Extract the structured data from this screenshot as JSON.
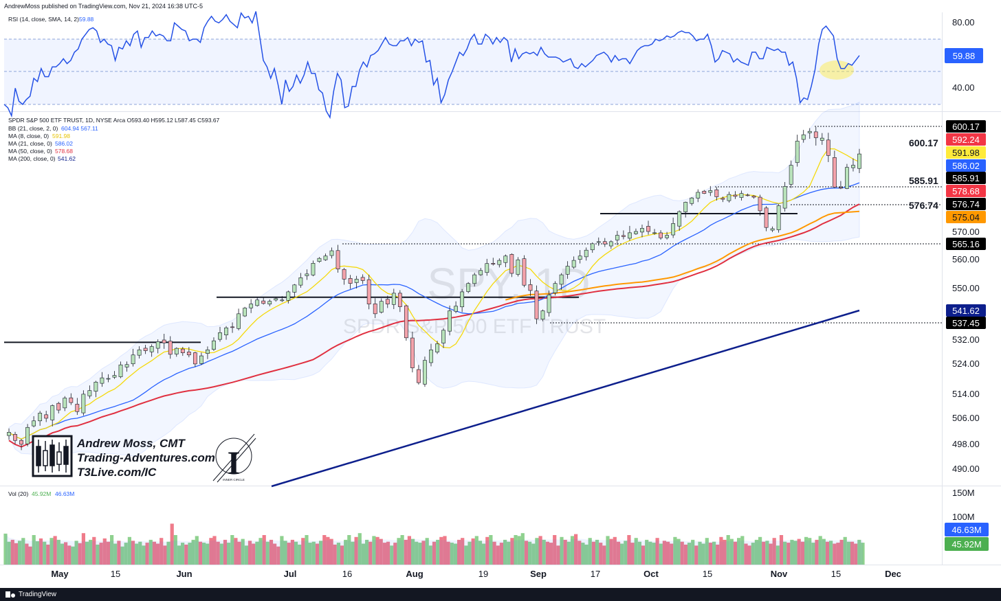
{
  "header": {
    "published": "AndrewMoss published on TradingView.com, Nov 21, 2024 16:38 UTC-5"
  },
  "rsi": {
    "legend": "RSI (14, close, SMA, 14, 2)",
    "value": "59.88",
    "ticks": [
      "80.00",
      "40.00"
    ],
    "upper_band": 70,
    "lower_band": 30,
    "series": [
      30,
      28,
      23,
      40,
      32,
      30,
      33,
      35,
      46,
      44,
      52,
      47,
      47,
      53,
      53,
      55,
      58,
      55,
      57,
      62,
      64,
      70,
      73,
      76,
      77,
      75,
      68,
      70,
      67,
      66,
      57,
      65,
      64,
      69,
      66,
      73,
      75,
      65,
      71,
      71,
      75,
      72,
      73,
      72,
      69,
      69,
      80,
      78,
      76,
      75,
      69,
      70,
      70,
      68,
      77,
      81,
      84,
      81,
      80,
      82,
      85,
      81,
      79,
      77,
      86,
      83,
      84,
      80,
      87,
      72,
      57,
      53,
      46,
      52,
      42,
      30,
      45,
      38,
      41,
      48,
      43,
      48,
      56,
      49,
      49,
      39,
      37,
      26,
      22,
      38,
      49,
      45,
      28,
      29,
      41,
      41,
      51,
      56,
      53,
      60,
      61,
      63,
      67,
      71,
      67,
      66,
      66,
      69,
      69,
      71,
      66,
      70,
      68,
      69,
      56,
      57,
      42,
      46,
      31,
      36,
      45,
      50,
      56,
      62,
      60,
      64,
      70,
      73,
      67,
      67,
      73,
      71,
      67,
      71,
      68,
      71,
      69,
      56,
      64,
      58,
      61,
      62,
      61,
      62,
      60,
      65,
      61,
      59,
      59,
      59,
      58,
      56,
      57,
      58,
      53,
      52,
      55,
      53,
      55,
      57,
      60,
      61,
      62,
      60,
      56,
      60,
      57,
      58,
      58,
      55,
      59,
      63,
      65,
      66,
      66,
      67,
      70,
      69,
      70,
      72,
      71,
      72,
      74,
      75,
      74,
      74,
      72,
      69,
      70,
      70,
      73,
      66,
      56,
      58,
      63,
      62,
      61,
      56,
      58,
      56,
      55,
      54,
      62,
      62,
      58,
      58,
      65,
      64,
      63,
      64,
      62,
      62,
      54,
      56,
      46,
      31,
      34,
      33,
      41,
      51,
      67,
      76,
      78,
      75,
      72,
      58,
      52,
      52,
      55,
      54,
      57,
      60
    ],
    "highlight": "ellipse"
  },
  "main": {
    "legend": [
      {
        "text": "SPDR S&P 500 ETF TRUST, 1D, NYSE Arca  O593.40  H595.12  L587.45  C593.67",
        "color": "#131722"
      },
      {
        "text": "BB (21, close, 2, 0)",
        "value": "604.94  567.11",
        "color": "#2962ff"
      },
      {
        "text": "MA (8, close, 0)",
        "value": "591.98",
        "color": "#f5d90a"
      },
      {
        "text": "MA (21, close, 0)",
        "value": "586.02",
        "color": "#2962ff"
      },
      {
        "text": "MA (50, close, 0)",
        "value": "578.68",
        "color": "#e03040"
      },
      {
        "text": "MA (200, close, 0)",
        "value": "541.62",
        "color": "#0d1f8c"
      }
    ],
    "watermark": {
      "symbol": "SPY, 1D",
      "name": "SPDR S&P 500 ETF TRUST"
    },
    "price_ticks": [
      "570.00",
      "560.00",
      "550.00",
      "532.00",
      "524.00",
      "514.00",
      "506.00",
      "498.00",
      "490.00"
    ],
    "badges": [
      {
        "label": "600.17",
        "bg": "#000000",
        "fg": "#ffffff"
      },
      {
        "label": "592.24",
        "bg": "#f23645",
        "fg": "#ffffff"
      },
      {
        "label": "591.98",
        "bg": "#ffeb3b",
        "fg": "#131722"
      },
      {
        "label": "586.02",
        "bg": "#2962ff",
        "fg": "#ffffff"
      },
      {
        "label": "585.91",
        "bg": "#000000",
        "fg": "#ffffff"
      },
      {
        "label": "578.68",
        "bg": "#f23645",
        "fg": "#ffffff"
      },
      {
        "label": "576.74",
        "bg": "#000000",
        "fg": "#ffffff"
      },
      {
        "label": "575.04",
        "bg": "#ff9800",
        "fg": "#131722"
      },
      {
        "label": "565.16",
        "bg": "#000000",
        "fg": "#ffffff"
      },
      {
        "label": "541.62",
        "bg": "#0d1f8c",
        "fg": "#ffffff"
      },
      {
        "label": "537.45",
        "bg": "#000000",
        "fg": "#ffffff"
      }
    ],
    "level_labels": [
      "600.17",
      "585.91",
      "576.74"
    ]
  },
  "branding": {
    "name": "Andrew Moss, CMT",
    "site": "Trading-Adventures.com",
    "link": "T3Live.com/IC",
    "seal": "INNER CIRCLE"
  },
  "volume": {
    "legend": "Vol (20)",
    "legend_vals": [
      "45.92M",
      "46.63M"
    ],
    "ticks": [
      "150M",
      "100M"
    ],
    "badges": [
      {
        "label": "46.63M",
        "bg": "#2962ff",
        "fg": "#ffffff"
      },
      {
        "label": "45.92M",
        "bg": "#4caf50",
        "fg": "#ffffff"
      }
    ],
    "series_m": [
      65,
      48,
      52,
      45,
      50,
      56,
      44,
      38,
      62,
      49,
      55,
      48,
      42,
      56,
      60,
      52,
      44,
      47,
      40,
      38,
      50,
      45,
      66,
      48,
      52,
      58,
      42,
      46,
      55,
      48,
      62,
      44,
      50,
      38,
      46,
      58,
      50,
      44,
      48,
      40,
      46,
      52,
      48,
      44,
      56,
      40,
      48,
      86,
      62,
      40,
      46,
      42,
      46,
      52,
      60,
      48,
      46,
      44,
      56,
      60,
      48,
      44,
      52,
      46,
      62,
      56,
      48,
      54,
      40,
      50,
      44,
      48,
      56,
      62,
      48,
      52,
      44,
      38,
      60,
      50,
      46,
      52,
      48,
      42,
      56,
      62,
      46,
      48,
      44,
      50,
      62,
      58,
      54,
      42,
      46,
      40,
      52,
      62,
      48,
      58,
      66,
      44,
      52,
      48,
      60,
      58,
      54,
      46,
      48,
      40,
      46,
      56,
      62,
      52,
      60,
      54,
      48,
      46,
      50,
      56,
      40,
      48,
      52,
      58,
      60,
      48,
      46,
      44,
      52,
      56,
      40,
      48,
      55,
      60,
      50,
      44,
      58,
      62,
      48,
      40,
      46,
      52,
      48,
      56,
      62,
      60,
      66,
      50,
      48,
      44,
      56,
      60,
      52,
      48,
      46,
      62,
      40,
      58,
      52,
      48,
      60,
      64,
      50,
      46,
      42,
      56,
      48,
      52,
      46,
      40,
      60,
      54,
      58,
      48,
      44,
      50,
      62,
      46,
      56,
      48,
      40,
      52,
      48,
      46,
      56,
      44,
      50,
      48,
      44,
      58,
      54,
      48,
      42,
      46,
      52,
      40,
      48,
      44,
      56,
      46,
      48,
      42,
      58,
      52,
      62,
      54,
      48,
      56,
      60,
      44,
      40,
      46,
      52,
      58,
      48,
      50,
      44,
      56,
      40,
      62,
      48,
      46,
      52,
      50,
      54,
      48,
      58,
      56,
      46,
      52,
      60,
      54,
      48,
      50,
      44,
      46,
      52,
      58,
      48,
      48,
      44,
      52,
      46
    ]
  },
  "time_axis": {
    "labels": [
      "May",
      "15",
      "Jun",
      "Jul",
      "16",
      "Aug",
      "19",
      "Sep",
      "17",
      "Oct",
      "15",
      "Nov",
      "15",
      "Dec"
    ],
    "bold": [
      "May",
      "Jun",
      "Jul",
      "Aug",
      "Sep",
      "Oct",
      "Nov",
      "Dec"
    ]
  },
  "footer": {
    "brand": "TradingView"
  },
  "chart_data": {
    "type": "candlestick",
    "title": "SPDR S&P 500 ETF TRUST, 1D, NYSE Arca",
    "last_ohlc": {
      "open": 593.4,
      "high": 595.12,
      "low": 587.45,
      "close": 593.67
    },
    "horizontal_levels": [
      600.17,
      585.91,
      576.74,
      565.16,
      537.45
    ],
    "support_lines": [
      531.0,
      546.5,
      574.5
    ],
    "closes": [
      501.5,
      499.0,
      497.8,
      503.0,
      505.0,
      507.5,
      505.8,
      510.0,
      508.5,
      512.5,
      511.0,
      508.0,
      513.8,
      515.0,
      517.8,
      519.2,
      519.0,
      520.0,
      523.5,
      523.6,
      526.8,
      528.5,
      528.2,
      529.6,
      531.2,
      530.8,
      527.0,
      529.0,
      527.5,
      526.8,
      523.8,
      526.5,
      528.5,
      531.5,
      534.2,
      535.8,
      536.0,
      540.5,
      542.5,
      544.0,
      545.5,
      544.2,
      545.0,
      546.0,
      545.5,
      548.5,
      551.0,
      553.5,
      554.8,
      558.5,
      560.2,
      561.0,
      562.8,
      556.5,
      553.0,
      551.5,
      553.0,
      552.5,
      544.0,
      540.5,
      545.0,
      544.0,
      548.0,
      543.0,
      532.5,
      522.5,
      517.6,
      525.0,
      528.5,
      530.5,
      535.0,
      541.5,
      543.2,
      548.5,
      551.5,
      554.5,
      556.0,
      558.4,
      558.2,
      559.5,
      561.0,
      555.0,
      559.7,
      550.9,
      549.0,
      538.8,
      541.5,
      547.4,
      551.5,
      554.5,
      557.5,
      559.5,
      561.0,
      563.0,
      565.2,
      566.0,
      565.1,
      566.0,
      568.5,
      568.0,
      569.5,
      570.0,
      570.8,
      570.0,
      569.5,
      567.5,
      568.5,
      572.0,
      575.0,
      578.0,
      580.2,
      583.1,
      582.5,
      584.0,
      580.8,
      579.5,
      582.0,
      581.0,
      582.5,
      581.5,
      580.6,
      575.2,
      571.0,
      570.7,
      576.5,
      586.0,
      591.0,
      596.7,
      598.2,
      599.0,
      597.5,
      597.4,
      593.3,
      585.7,
      585.2,
      590.5,
      591.0,
      593.67
    ],
    "ma200_range": [
      490.0,
      541.62
    ],
    "y_range": [
      488,
      608
    ]
  }
}
